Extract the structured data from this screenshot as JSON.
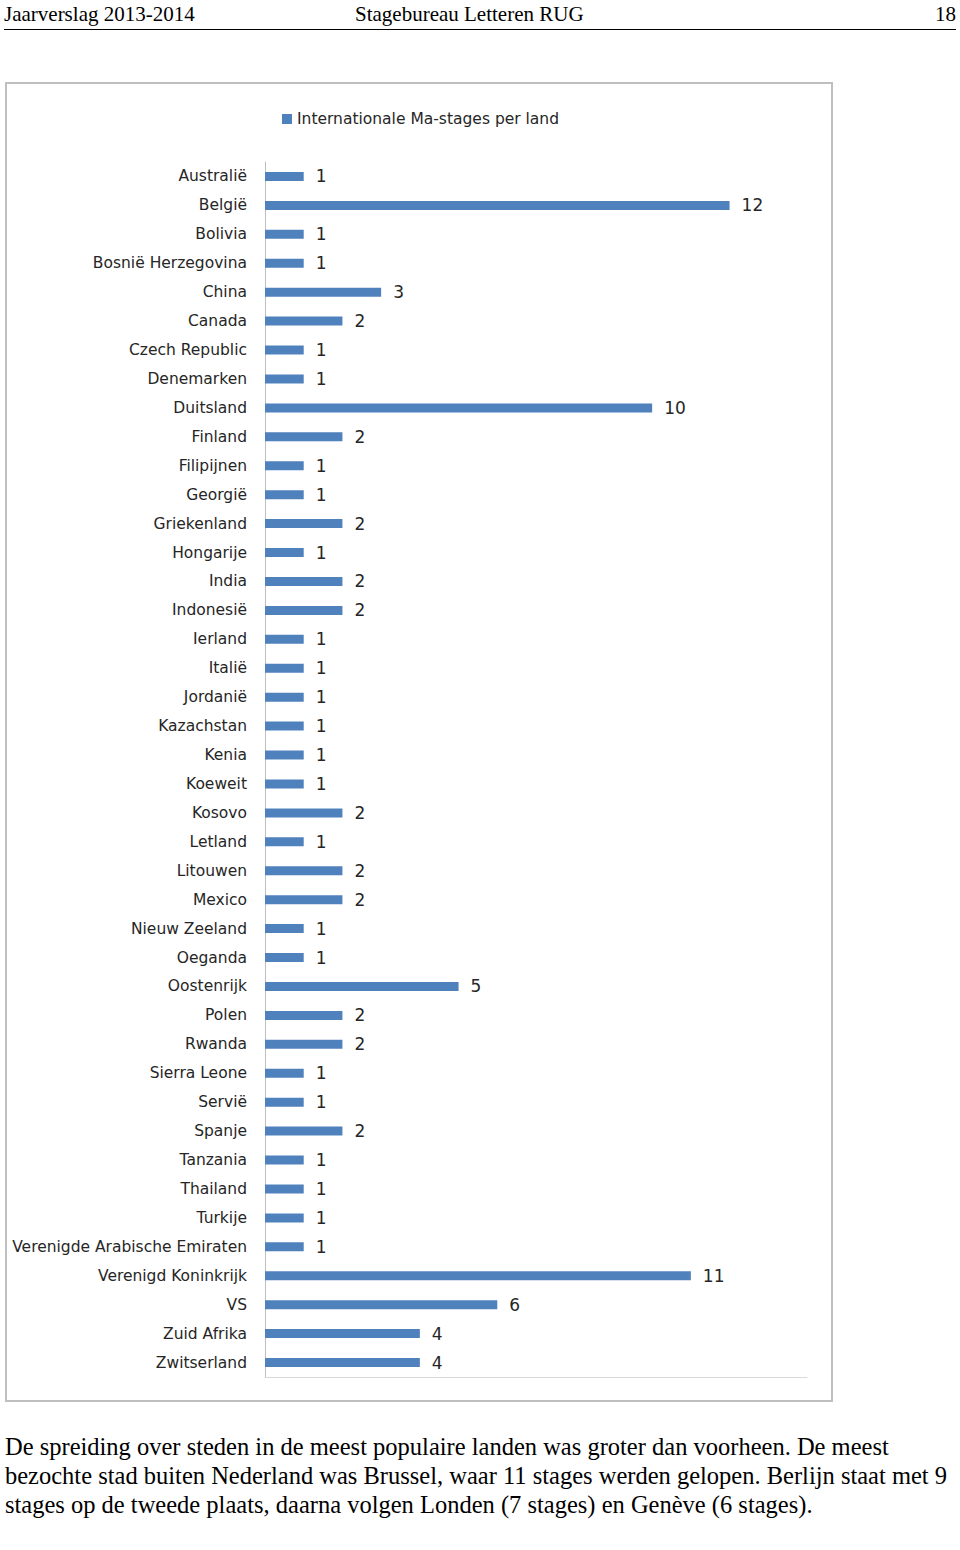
{
  "header": {
    "left": "Jaarverslag 2013-2014",
    "center": "Stagebureau Letteren RUG",
    "right": "18"
  },
  "chart_data": {
    "type": "bar",
    "orientation": "horizontal",
    "categories": [
      "Australië",
      "België",
      "Bolivia",
      "Bosnië Herzegovina",
      "China",
      "Canada",
      "Czech Republic",
      "Denemarken",
      "Duitsland",
      "Finland",
      "Filipijnen",
      "Georgië",
      "Griekenland",
      "Hongarije",
      "India",
      "Indonesië",
      "Ierland",
      "Italië",
      "Jordanië",
      "Kazachstan",
      "Kenia",
      "Koeweit",
      "Kosovo",
      "Letland",
      "Litouwen",
      "Mexico",
      "Nieuw Zeeland",
      "Oeganda",
      "Oostenrijk",
      "Polen",
      "Rwanda",
      "Sierra Leone",
      "Servië",
      "Spanje",
      "Tanzania",
      "Thailand",
      "Turkije",
      "Verenigde Arabische Emiraten",
      "Verenigd Koninkrijk",
      "VS",
      "Zuid Afrika",
      "Zwitserland"
    ],
    "series": [
      {
        "name": "Internationale Ma-stages per land",
        "color": "#4f81bd",
        "values": [
          1,
          12,
          1,
          1,
          3,
          2,
          1,
          1,
          10,
          2,
          1,
          1,
          2,
          1,
          2,
          2,
          1,
          1,
          1,
          1,
          1,
          1,
          2,
          1,
          2,
          2,
          1,
          1,
          5,
          2,
          2,
          1,
          1,
          2,
          1,
          1,
          1,
          1,
          11,
          6,
          4,
          4
        ]
      }
    ],
    "xlim": [
      0,
      14
    ],
    "legend": "top",
    "data_labels": true,
    "tick_labels": "y",
    "grid": false
  },
  "caption": "De spreiding over steden in de meest populaire landen was groter dan voorheen. De meest bezochte stad buiten Nederland was Brussel, waar 11 stages werden gelopen. Berlijn staat met 9 stages op de tweede plaats, daarna volgen Londen (7 stages) en Genève (6 stages)."
}
